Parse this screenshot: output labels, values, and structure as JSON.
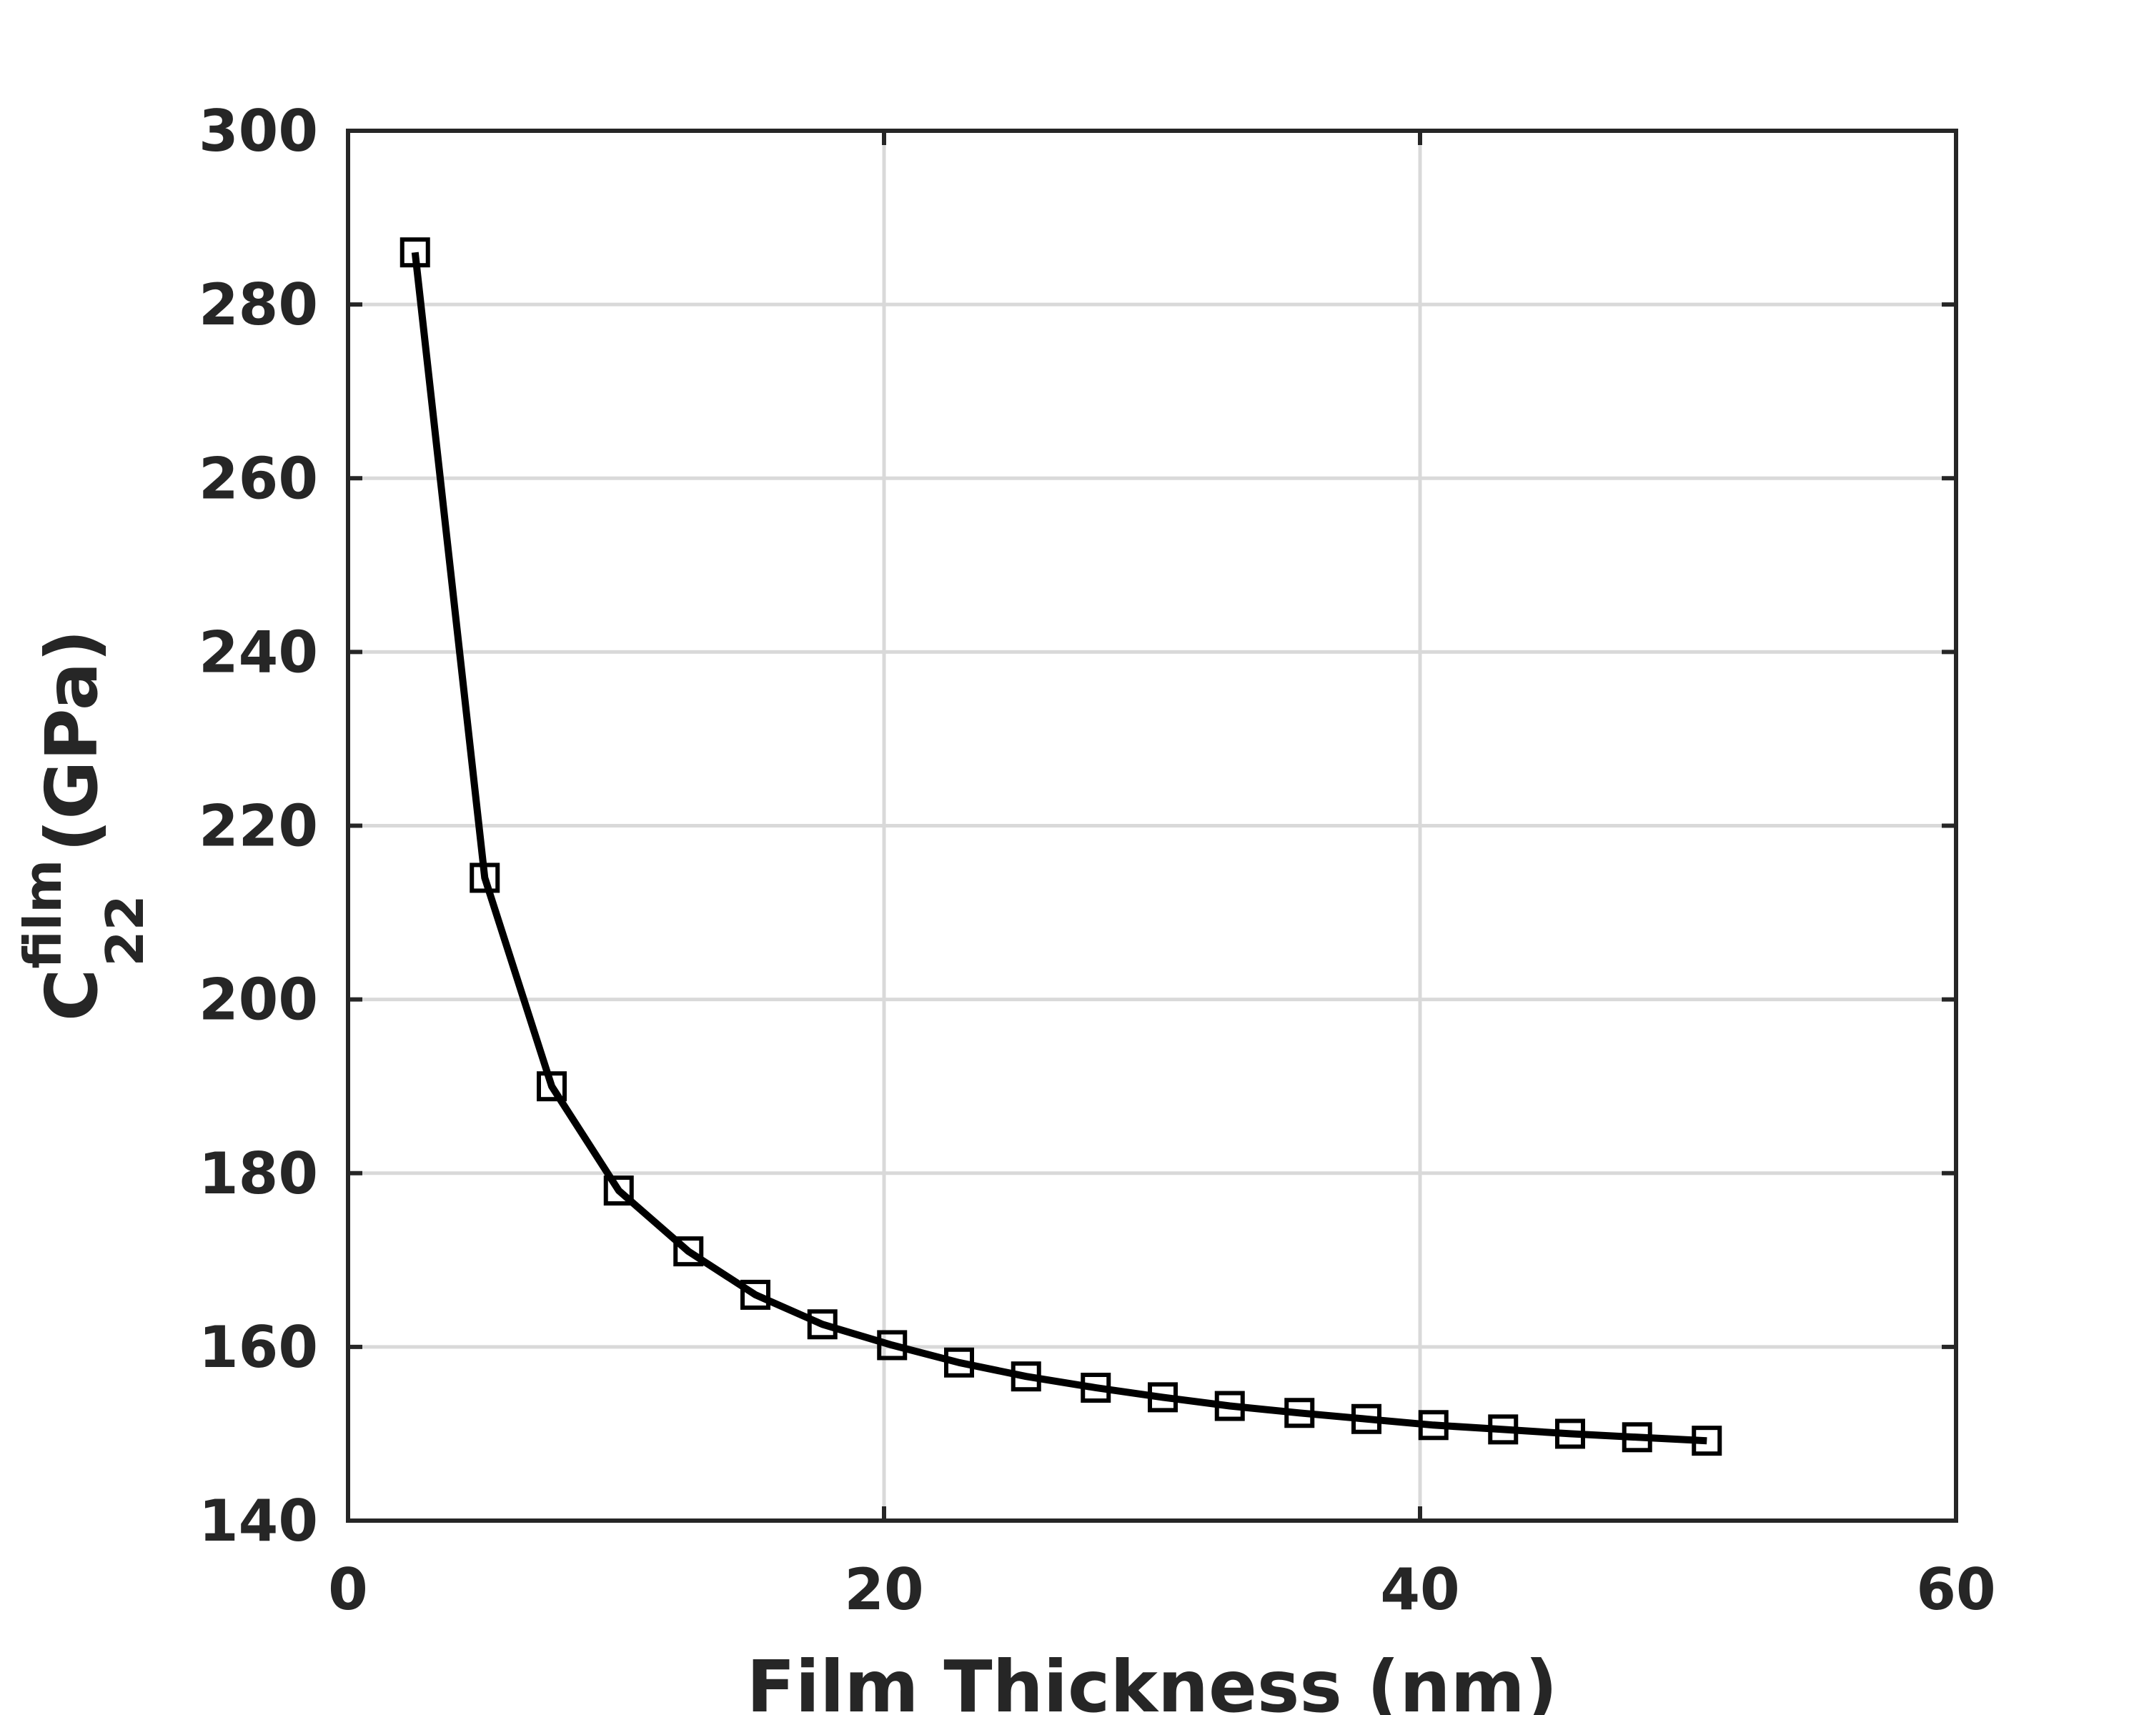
{
  "chart_data": {
    "type": "line",
    "title": "",
    "xlabel": "Film Thickness (nm)",
    "ylabel": {
      "base": "C",
      "superscript": "film",
      "subscript": "22",
      "unit": "(GPa)"
    },
    "xlim": [
      0,
      60
    ],
    "ylim": [
      140,
      300
    ],
    "xticks": [
      "0",
      "20",
      "40",
      "60"
    ],
    "yticks": [
      "140",
      "160",
      "180",
      "200",
      "220",
      "240",
      "260",
      "280",
      "300"
    ],
    "grid": true,
    "marker": "square",
    "line_color": "#000000",
    "series": [
      {
        "x": [
          2.5,
          5.1,
          7.6,
          10.1,
          12.7,
          15.2,
          17.7,
          20.3,
          22.8,
          25.3,
          27.9,
          30.4,
          32.9,
          35.5,
          38.0,
          40.5,
          43.1,
          45.6,
          48.1,
          50.7
        ],
        "values": [
          286,
          214,
          190,
          178,
          171,
          166,
          162.6,
          160.2,
          158.2,
          156.6,
          155.3,
          154.2,
          153.2,
          152.4,
          151.7,
          151.0,
          150.5,
          150.0,
          149.6,
          149.2
        ]
      }
    ]
  }
}
